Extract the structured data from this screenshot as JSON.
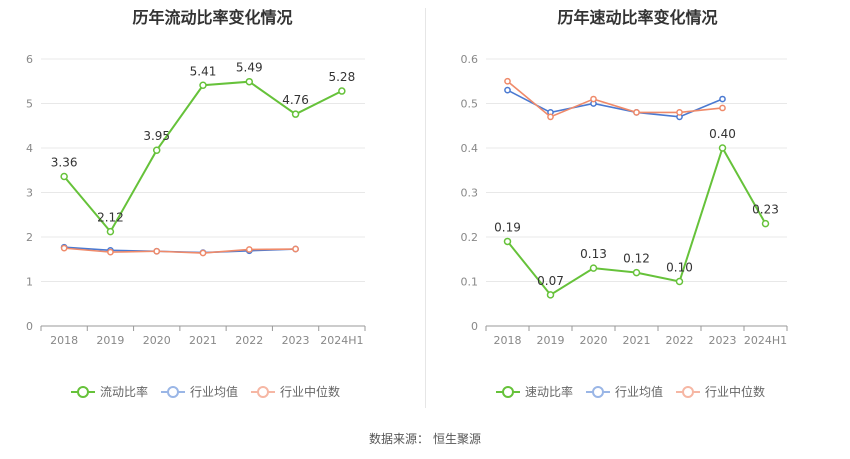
{
  "colors": {
    "series_primary": "#66c23a",
    "industry_avg": "#4a79d1",
    "industry_median": "#ef8a6a",
    "legend_avg": "#9ab6e6",
    "legend_median": "#f6b7a4",
    "axis_text": "#888888",
    "grid": "#e8e8e8",
    "axis_line": "#999999"
  },
  "source": {
    "label": "数据来源：",
    "value": "恒生聚源"
  },
  "chart_data": [
    {
      "type": "line",
      "title": "历年流动比率变化情况",
      "categories": [
        "2018",
        "2019",
        "2020",
        "2021",
        "2022",
        "2023",
        "2024H1"
      ],
      "ylim": [
        0,
        6
      ],
      "yticks": [
        "0",
        "1",
        "2",
        "3",
        "4",
        "5",
        "6"
      ],
      "ytick_values": [
        0,
        1,
        2,
        3,
        4,
        5,
        6
      ],
      "grid": true,
      "legend_position": "bottom",
      "series": [
        {
          "name": "流动比率",
          "values": [
            3.36,
            2.12,
            3.95,
            5.41,
            5.49,
            4.76,
            5.28
          ],
          "labels": [
            "3.36",
            "2.12",
            "3.95",
            "5.41",
            "5.49",
            "4.76",
            "5.28"
          ]
        },
        {
          "name": "行业均值",
          "values": [
            1.77,
            1.7,
            1.68,
            1.65,
            1.69,
            1.73,
            null
          ]
        },
        {
          "name": "行业中位数",
          "values": [
            1.75,
            1.66,
            1.68,
            1.64,
            1.72,
            1.73,
            null
          ]
        }
      ]
    },
    {
      "type": "line",
      "title": "历年速动比率变化情况",
      "categories": [
        "2018",
        "2019",
        "2020",
        "2021",
        "2022",
        "2023",
        "2024H1"
      ],
      "ylim": [
        0,
        0.6
      ],
      "yticks": [
        "0",
        "0.1",
        "0.2",
        "0.3",
        "0.4",
        "0.5",
        "0.6"
      ],
      "ytick_values": [
        0,
        0.1,
        0.2,
        0.3,
        0.4,
        0.5,
        0.6
      ],
      "grid": true,
      "legend_position": "bottom",
      "series": [
        {
          "name": "速动比率",
          "values": [
            0.19,
            0.07,
            0.13,
            0.12,
            0.1,
            0.4,
            0.23
          ],
          "labels": [
            "0.19",
            "0.07",
            "0.13",
            "0.12",
            "0.10",
            "0.40",
            "0.23"
          ]
        },
        {
          "name": "行业均值",
          "values": [
            0.53,
            0.48,
            0.5,
            0.48,
            0.47,
            0.51,
            null
          ]
        },
        {
          "name": "行业中位数",
          "values": [
            0.55,
            0.47,
            0.51,
            0.48,
            0.48,
            0.49,
            null
          ]
        }
      ]
    }
  ]
}
